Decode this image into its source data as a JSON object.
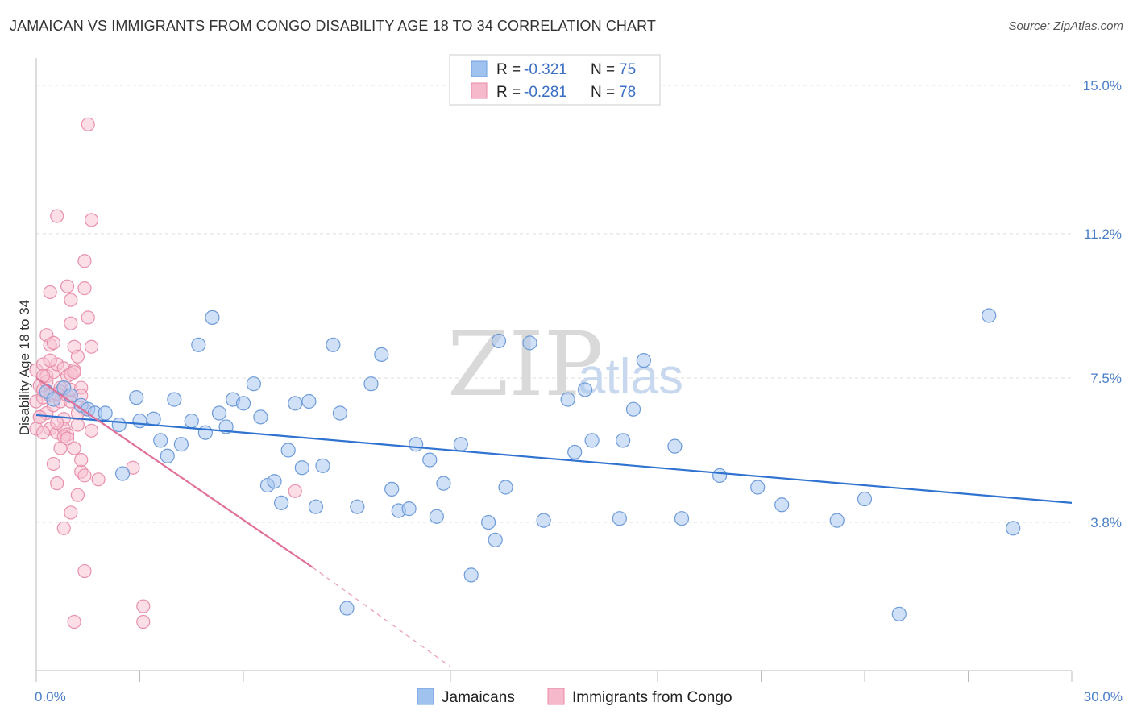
{
  "header": {
    "title": "JAMAICAN VS IMMIGRANTS FROM CONGO DISABILITY AGE 18 TO 34 CORRELATION CHART",
    "source": "Source: ZipAtlas.com"
  },
  "watermark": {
    "zip": "ZIP",
    "atlas": "atlas"
  },
  "legend": {
    "r_label": "R =",
    "n_label": "N =",
    "entries": [
      {
        "r": "-0.321",
        "n": "75",
        "color": "#9fc2ef",
        "stroke": "#6f9fdc"
      },
      {
        "r": "-0.281",
        "n": "78",
        "color": "#f6b8cb",
        "stroke": "#e98aa8"
      }
    ]
  },
  "colors": {
    "blue_fill": "#a9c8f0",
    "blue_stroke": "#6e9bd8",
    "blue_line": "#2f72d0",
    "pink_fill": "#f7c2d2",
    "pink_stroke": "#e891ad",
    "pink_line": "#e0719a",
    "grid": "#dddddd",
    "axis": "#bbbbbb",
    "tick_text": "#4a7fc7"
  },
  "chart_data": {
    "type": "scatter",
    "title": "JAMAICAN VS IMMIGRANTS FROM CONGO DISABILITY AGE 18 TO 34 CORRELATION CHART",
    "xlabel": "",
    "ylabel": "Disability Age 18 to 34",
    "xlim": [
      0,
      30
    ],
    "ylim": [
      0,
      15.7
    ],
    "x_tick_labels": [
      "0.0%",
      "30.0%"
    ],
    "y_ticks": [
      3.8,
      7.5,
      11.2,
      15.0
    ],
    "y_tick_labels": [
      "3.8%",
      "7.5%",
      "11.2%",
      "15.0%"
    ],
    "legend_position": "top-center",
    "series": [
      {
        "name": "Jamaicans",
        "trend": {
          "x": [
            0,
            30
          ],
          "y": [
            6.55,
            4.3
          ]
        },
        "points": [
          [
            0.3,
            7.15
          ],
          [
            0.5,
            6.95
          ],
          [
            0.8,
            7.25
          ],
          [
            1.0,
            7.05
          ],
          [
            1.3,
            6.8
          ],
          [
            1.5,
            6.7
          ],
          [
            1.7,
            6.6
          ],
          [
            2.0,
            6.6
          ],
          [
            2.4,
            6.3
          ],
          [
            2.5,
            5.05
          ],
          [
            2.9,
            7.0
          ],
          [
            3.0,
            6.4
          ],
          [
            3.4,
            6.45
          ],
          [
            3.6,
            5.9
          ],
          [
            3.8,
            5.5
          ],
          [
            4.0,
            6.95
          ],
          [
            4.2,
            5.8
          ],
          [
            4.5,
            6.4
          ],
          [
            4.7,
            8.35
          ],
          [
            4.9,
            6.1
          ],
          [
            5.1,
            9.05
          ],
          [
            5.3,
            6.6
          ],
          [
            5.5,
            6.25
          ],
          [
            5.7,
            6.95
          ],
          [
            6.0,
            6.85
          ],
          [
            6.3,
            7.35
          ],
          [
            6.5,
            6.5
          ],
          [
            6.7,
            4.75
          ],
          [
            6.9,
            4.85
          ],
          [
            7.1,
            4.3
          ],
          [
            7.3,
            5.65
          ],
          [
            7.5,
            6.85
          ],
          [
            7.7,
            5.2
          ],
          [
            7.9,
            6.9
          ],
          [
            8.1,
            4.2
          ],
          [
            8.3,
            5.25
          ],
          [
            8.6,
            8.35
          ],
          [
            8.8,
            6.6
          ],
          [
            9.0,
            1.6
          ],
          [
            9.3,
            4.2
          ],
          [
            9.7,
            7.35
          ],
          [
            10.0,
            8.1
          ],
          [
            10.3,
            4.65
          ],
          [
            10.5,
            4.1
          ],
          [
            10.8,
            4.15
          ],
          [
            11.0,
            5.8
          ],
          [
            11.4,
            5.4
          ],
          [
            11.6,
            3.95
          ],
          [
            11.8,
            4.8
          ],
          [
            12.3,
            5.8
          ],
          [
            12.6,
            2.45
          ],
          [
            13.1,
            3.8
          ],
          [
            13.3,
            3.35
          ],
          [
            13.4,
            8.45
          ],
          [
            13.6,
            4.7
          ],
          [
            14.3,
            8.4
          ],
          [
            14.7,
            3.85
          ],
          [
            15.4,
            6.95
          ],
          [
            15.6,
            5.6
          ],
          [
            15.9,
            7.2
          ],
          [
            16.1,
            5.9
          ],
          [
            16.9,
            3.9
          ],
          [
            17.0,
            5.9
          ],
          [
            17.3,
            6.7
          ],
          [
            17.6,
            7.95
          ],
          [
            18.5,
            5.75
          ],
          [
            18.7,
            3.9
          ],
          [
            19.8,
            5.0
          ],
          [
            20.9,
            4.7
          ],
          [
            21.6,
            4.25
          ],
          [
            23.2,
            3.85
          ],
          [
            24.0,
            4.4
          ],
          [
            25.0,
            1.45
          ],
          [
            27.6,
            9.1
          ],
          [
            28.3,
            3.65
          ]
        ]
      },
      {
        "name": "Immigrants from Congo",
        "trend_solid": {
          "x": [
            0.0,
            8.0
          ],
          "y": [
            7.5,
            2.65
          ]
        },
        "trend_dashed": {
          "x": [
            8.0,
            12.0
          ],
          "y": [
            2.65,
            0.1
          ]
        },
        "points": [
          [
            0.0,
            6.2
          ],
          [
            0.0,
            6.9
          ],
          [
            0.0,
            7.7
          ],
          [
            0.1,
            7.3
          ],
          [
            0.1,
            6.5
          ],
          [
            0.2,
            7.0
          ],
          [
            0.2,
            7.85
          ],
          [
            0.2,
            7.2
          ],
          [
            0.3,
            6.6
          ],
          [
            0.3,
            8.6
          ],
          [
            0.3,
            7.55
          ],
          [
            0.4,
            8.35
          ],
          [
            0.4,
            9.7
          ],
          [
            0.4,
            6.2
          ],
          [
            0.4,
            7.05
          ],
          [
            0.5,
            5.3
          ],
          [
            0.5,
            7.65
          ],
          [
            0.5,
            6.8
          ],
          [
            0.6,
            11.65
          ],
          [
            0.6,
            7.85
          ],
          [
            0.6,
            6.1
          ],
          [
            0.6,
            4.8
          ],
          [
            0.7,
            5.7
          ],
          [
            0.7,
            6.9
          ],
          [
            0.7,
            7.25
          ],
          [
            0.8,
            7.75
          ],
          [
            0.8,
            6.45
          ],
          [
            0.8,
            3.65
          ],
          [
            0.8,
            6.2
          ],
          [
            0.9,
            7.55
          ],
          [
            0.9,
            9.85
          ],
          [
            0.9,
            7.05
          ],
          [
            0.9,
            6.05
          ],
          [
            1.0,
            4.05
          ],
          [
            1.0,
            8.9
          ],
          [
            1.0,
            6.9
          ],
          [
            1.0,
            9.5
          ],
          [
            1.0,
            7.2
          ],
          [
            1.1,
            1.25
          ],
          [
            1.1,
            8.3
          ],
          [
            1.1,
            7.7
          ],
          [
            1.1,
            5.7
          ],
          [
            1.2,
            8.05
          ],
          [
            1.2,
            4.5
          ],
          [
            1.2,
            6.3
          ],
          [
            1.3,
            7.25
          ],
          [
            1.3,
            7.05
          ],
          [
            1.3,
            5.1
          ],
          [
            1.4,
            5.0
          ],
          [
            1.4,
            6.7
          ],
          [
            1.4,
            2.55
          ],
          [
            1.4,
            9.8
          ],
          [
            1.4,
            10.5
          ],
          [
            1.5,
            14.0
          ],
          [
            1.5,
            9.05
          ],
          [
            1.6,
            6.15
          ],
          [
            1.6,
            8.3
          ],
          [
            1.6,
            11.55
          ],
          [
            1.8,
            4.9
          ],
          [
            0.1,
            6.5
          ],
          [
            0.2,
            6.1
          ],
          [
            0.3,
            7.4
          ],
          [
            0.5,
            8.4
          ],
          [
            0.6,
            6.35
          ],
          [
            0.7,
            7.15
          ],
          [
            0.8,
            6.0
          ],
          [
            0.9,
            5.95
          ],
          [
            1.0,
            7.6
          ],
          [
            1.1,
            7.65
          ],
          [
            1.2,
            6.6
          ],
          [
            1.3,
            5.4
          ],
          [
            0.4,
            7.95
          ],
          [
            0.2,
            7.55
          ],
          [
            0.6,
            7.1
          ],
          [
            2.8,
            5.2
          ],
          [
            3.1,
            1.25
          ],
          [
            3.1,
            1.65
          ],
          [
            7.5,
            4.6
          ]
        ]
      }
    ]
  },
  "bottom_legend": [
    "Jamaicans",
    "Immigrants from Congo"
  ]
}
